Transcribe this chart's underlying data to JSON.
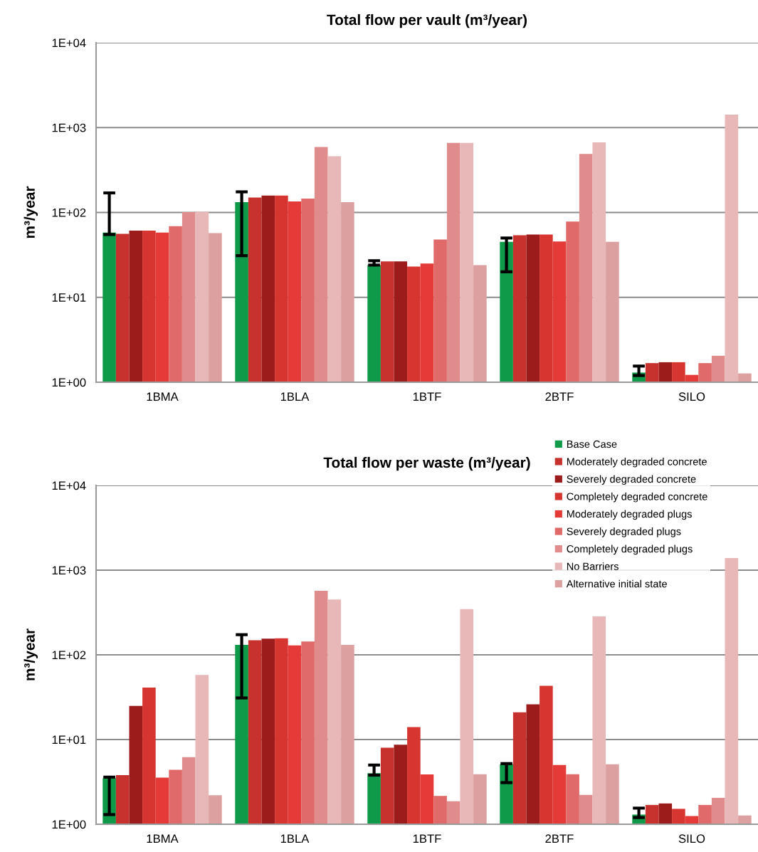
{
  "chart_data": [
    {
      "type": "bar",
      "title": "Total flow per vault (m³/year)",
      "ylabel": "m³/year",
      "log": "y",
      "grid": "y",
      "legend": false,
      "categories": [
        "1BMA",
        "1BLA",
        "1BTF",
        "2BTF",
        "SILO"
      ],
      "ylim": [
        1,
        10000
      ],
      "yticks": [
        {
          "value": 1,
          "label": "1E+00"
        },
        {
          "value": 10,
          "label": "1E+01"
        },
        {
          "value": 100,
          "label": "1E+02"
        },
        {
          "value": 1000,
          "label": "1E+03"
        },
        {
          "value": 10000,
          "label": "1E+04"
        }
      ],
      "series": [
        {
          "color": "#0e9a48",
          "values": [
            58,
            132,
            24,
            45,
            1.3
          ],
          "errors": [
            [
              55,
              170
            ],
            [
              31,
              175
            ],
            [
              24,
              27
            ],
            [
              20,
              50
            ],
            [
              1.2,
              1.55
            ]
          ]
        },
        {
          "color": "#c8322e",
          "values": [
            56,
            150,
            26.5,
            54,
            1.68
          ]
        },
        {
          "color": "#9c1c1c",
          "values": [
            61,
            158,
            26.5,
            55,
            1.72
          ]
        },
        {
          "color": "#d63530",
          "values": [
            61,
            158,
            23,
            55,
            1.72
          ]
        },
        {
          "color": "#e43a38",
          "values": [
            58,
            135,
            25,
            45.5,
            1.22
          ]
        },
        {
          "color": "#e06a6a",
          "values": [
            69,
            146,
            48,
            78,
            1.68
          ]
        },
        {
          "color": "#e08c8c",
          "values": [
            101,
            590,
            660,
            490,
            2.05
          ]
        },
        {
          "color": "#e8b8b8",
          "values": [
            102,
            460,
            660,
            670,
            1420
          ]
        },
        {
          "color": "#dca0a0",
          "values": [
            57,
            132,
            24,
            45,
            1.27
          ]
        }
      ]
    },
    {
      "type": "bar",
      "title": "Total flow per waste (m³/year)",
      "ylabel": "m³/year",
      "log": "y",
      "grid": "y",
      "legend": "top right",
      "categories": [
        "1BMA",
        "1BLA",
        "1BTF",
        "2BTF",
        "SILO"
      ],
      "ylim": [
        1,
        10000
      ],
      "yticks": [
        {
          "value": 1,
          "label": "1E+00"
        },
        {
          "value": 10,
          "label": "1E+01"
        },
        {
          "value": 100,
          "label": "1E+02"
        },
        {
          "value": 1000,
          "label": "1E+03"
        },
        {
          "value": 10000,
          "label": "1E+04"
        }
      ],
      "series": [
        {
          "name": "Base Case",
          "color": "#0e9a48",
          "values": [
            3.5,
            131,
            4,
            5.1,
            1.3
          ],
          "errors": [
            [
              1.3,
              3.6
            ],
            [
              31,
              173
            ],
            [
              3.8,
              5
            ],
            [
              3.1,
              5.2
            ],
            [
              1.2,
              1.55
            ]
          ]
        },
        {
          "name": "Moderately degraded concrete",
          "color": "#c8322e",
          "values": [
            3.8,
            149,
            8,
            21,
            1.69
          ]
        },
        {
          "name": "Severely degraded concrete",
          "color": "#9c1c1c",
          "values": [
            25,
            155,
            8.7,
            26,
            1.76
          ]
        },
        {
          "name": "Completely degraded concrete",
          "color": "#d63530",
          "values": [
            41,
            157,
            14,
            43,
            1.52
          ]
        },
        {
          "name": "Moderately degraded plugs",
          "color": "#e43a38",
          "values": [
            3.56,
            129,
            3.87,
            5,
            1.25
          ]
        },
        {
          "name": "Severely degraded plugs",
          "color": "#e06a6a",
          "values": [
            4.4,
            144,
            2.16,
            3.9,
            1.69
          ]
        },
        {
          "name": "Completely degraded plugs",
          "color": "#e08c8c",
          "values": [
            6.2,
            570,
            1.87,
            2.22,
            2.05
          ]
        },
        {
          "name": "No Barriers",
          "color": "#e8b8b8",
          "values": [
            58,
            450,
            346,
            284,
            1390
          ]
        },
        {
          "name": "Alternative initial state",
          "color": "#dca0a0",
          "values": [
            2.2,
            131,
            3.9,
            5.1,
            1.27
          ]
        }
      ]
    }
  ]
}
